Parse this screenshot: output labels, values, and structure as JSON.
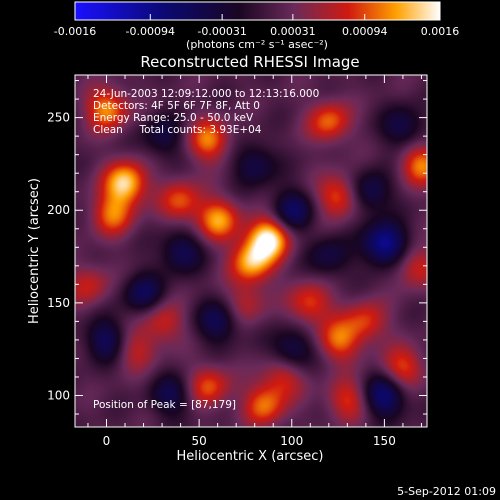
{
  "chart_data": {
    "type": "heatmap",
    "title": "Reconstructed RHESSI Image",
    "xlabel": "Heliocentric X (arcsec)",
    "ylabel": "Heliocentric Y (arcsec)",
    "xlim": [
      -17,
      173
    ],
    "ylim": [
      83,
      273
    ],
    "x_ticks": [
      0,
      50,
      100,
      150
    ],
    "y_ticks": [
      100,
      150,
      200,
      250
    ],
    "colorbar": {
      "min": -0.0016,
      "max": 0.0016,
      "ticks": [
        -0.0016,
        -0.00094,
        -0.00031,
        0.00031,
        0.00094,
        0.0016
      ],
      "tick_labels": [
        "-0.0016",
        "-0.00094",
        "-0.00031",
        "0.00031",
        "0.00094",
        "0.0016"
      ],
      "unit_label": "(photons cm⁻² s⁻¹ asec⁻²)",
      "colors": [
        "#1a10ff",
        "#0b0870",
        "#1a0622",
        "#6a2a5a",
        "#d01a10",
        "#ffa000",
        "#ffffff"
      ]
    },
    "annotations": [
      "24-Jun-2003 12:09:12.000 to 12:13:16.000",
      "Detectors: 4F 5F 6F 7F 8F, Att 0",
      "Energy Range: 25.0 - 50.0 keV",
      "Clean     Total counts: 3.93E+04"
    ],
    "peak_label": "Position of Peak = [87,179]",
    "blobs": [
      {
        "x": 87,
        "y": 185,
        "amp": 1.0
      },
      {
        "x": 78,
        "y": 172,
        "amp": 0.75
      },
      {
        "x": 10,
        "y": 215,
        "amp": 0.9
      },
      {
        "x": 3,
        "y": 198,
        "amp": 0.6
      },
      {
        "x": 0,
        "y": 255,
        "amp": 0.7
      },
      {
        "x": 55,
        "y": 238,
        "amp": 0.65
      },
      {
        "x": 60,
        "y": 195,
        "amp": 0.7
      },
      {
        "x": 40,
        "y": 205,
        "amp": 0.55
      },
      {
        "x": 120,
        "y": 248,
        "amp": 0.6
      },
      {
        "x": 125,
        "y": 208,
        "amp": 0.6
      },
      {
        "x": 110,
        "y": 150,
        "amp": 0.55
      },
      {
        "x": 125,
        "y": 130,
        "amp": 0.6
      },
      {
        "x": 140,
        "y": 140,
        "amp": 0.5
      },
      {
        "x": 170,
        "y": 225,
        "amp": 0.65
      },
      {
        "x": 167,
        "y": 170,
        "amp": 0.45
      },
      {
        "x": 30,
        "y": 140,
        "amp": 0.45
      },
      {
        "x": 15,
        "y": 125,
        "amp": 0.4
      },
      {
        "x": 55,
        "y": 105,
        "amp": 0.55
      },
      {
        "x": 85,
        "y": 95,
        "amp": 0.6
      },
      {
        "x": 95,
        "y": 110,
        "amp": 0.45
      },
      {
        "x": 130,
        "y": 98,
        "amp": 0.5
      },
      {
        "x": 160,
        "y": 115,
        "amp": 0.55
      },
      {
        "x": -10,
        "y": 160,
        "amp": 0.4
      },
      {
        "x": 75,
        "y": 150,
        "amp": 0.35
      },
      {
        "x": 40,
        "y": 178,
        "amp": -0.5
      },
      {
        "x": 100,
        "y": 200,
        "amp": -0.55
      },
      {
        "x": 150,
        "y": 182,
        "amp": -0.85
      },
      {
        "x": 142,
        "y": 210,
        "amp": -0.5
      },
      {
        "x": 80,
        "y": 225,
        "amp": -0.45
      },
      {
        "x": 20,
        "y": 155,
        "amp": -0.5
      },
      {
        "x": 0,
        "y": 130,
        "amp": -0.55
      },
      {
        "x": 60,
        "y": 140,
        "amp": -0.5
      },
      {
        "x": 100,
        "y": 125,
        "amp": -0.5
      },
      {
        "x": 150,
        "y": 100,
        "amp": -0.7
      },
      {
        "x": 120,
        "y": 175,
        "amp": -0.4
      },
      {
        "x": 160,
        "y": 245,
        "amp": -0.45
      },
      {
        "x": 30,
        "y": 240,
        "amp": -0.4
      },
      {
        "x": 35,
        "y": 100,
        "amp": -0.45
      }
    ]
  },
  "footer_date": "5-Sep-2012 01:09"
}
